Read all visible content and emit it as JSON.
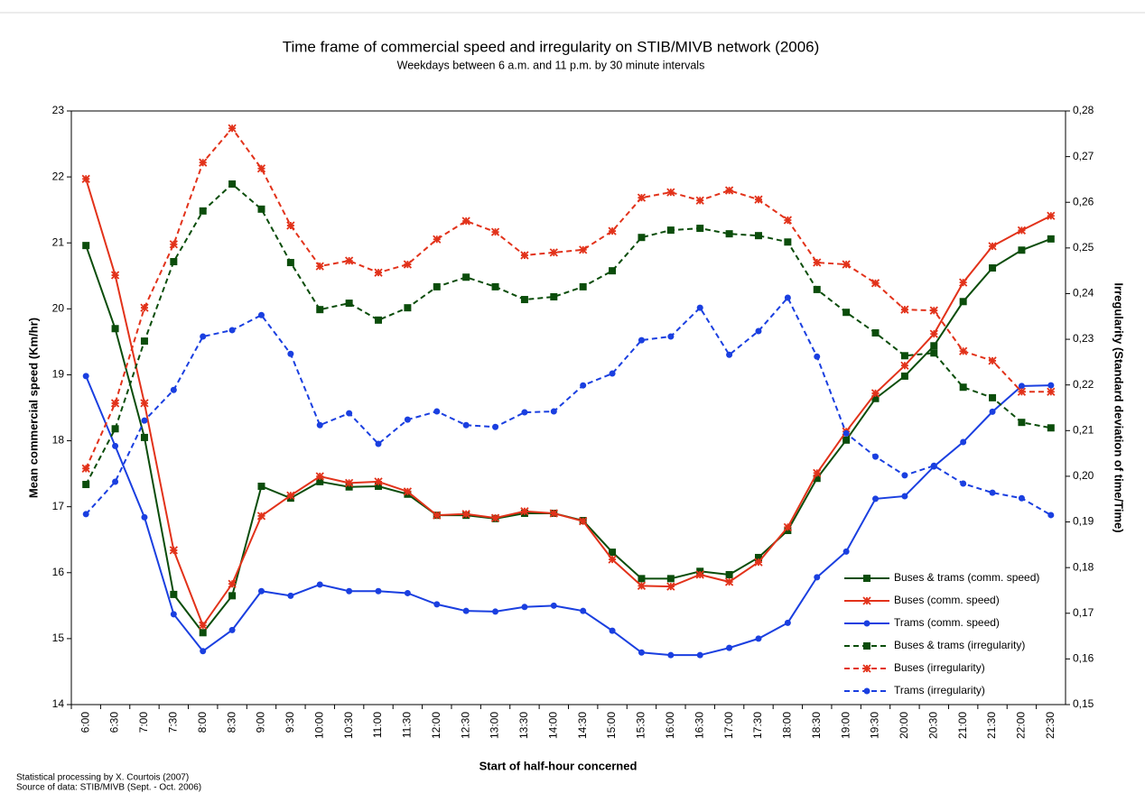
{
  "chart_data": {
    "type": "line",
    "title": "Time frame of commercial speed and irregularity on STIB/MIVB network (2006)",
    "subtitle": "Weekdays between 6 a.m. and 11 p.m. by 30 minute intervals",
    "x_label": "Start of half-hour concerned",
    "y_label": "Mean commercial speed (Km/hr)",
    "y2_label": "Irregularity (Standard deviation of time/Time)",
    "notes": [
      "Statistical processing by X. Courtois (2007)",
      "Source of data: STIB/MIVB (Sept. - Oct. 2006)"
    ],
    "categories": [
      "6:00",
      "6:30",
      "7:00",
      "7:30",
      "8:00",
      "8:30",
      "9:00",
      "9:30",
      "10:00",
      "10:30",
      "11:00",
      "11:30",
      "12:00",
      "12:30",
      "13:00",
      "13:30",
      "14:00",
      "14:30",
      "15:00",
      "15:30",
      "16:00",
      "16:30",
      "17:00",
      "17:30",
      "18:00",
      "18:30",
      "19:00",
      "19:30",
      "20:00",
      "20:30",
      "21:00",
      "21:30",
      "22:00",
      "22:30"
    ],
    "ylim": [
      14,
      23
    ],
    "yticks": [
      14,
      15,
      16,
      17,
      18,
      19,
      20,
      21,
      22,
      23
    ],
    "y2lim": [
      0.15,
      0.28
    ],
    "y2ticks": [
      {
        "value": 0.15,
        "label": "0,15"
      },
      {
        "value": 0.16,
        "label": "0,16"
      },
      {
        "value": 0.17,
        "label": "0,17"
      },
      {
        "value": 0.18,
        "label": "0,18"
      },
      {
        "value": 0.19,
        "label": "0,19"
      },
      {
        "value": 0.2,
        "label": "0,20"
      },
      {
        "value": 0.21,
        "label": "0,21"
      },
      {
        "value": 0.22,
        "label": "0,22"
      },
      {
        "value": 0.23,
        "label": "0,23"
      },
      {
        "value": 0.24,
        "label": "0,24"
      },
      {
        "value": 0.25,
        "label": "0,25"
      },
      {
        "value": 0.26,
        "label": "0,26"
      },
      {
        "value": 0.27,
        "label": "0,27"
      },
      {
        "value": 0.28,
        "label": "0,28"
      }
    ],
    "legend": "lower right",
    "series": [
      {
        "name": "Buses & trams (comm. speed)",
        "color": "#0b4d0b",
        "marker": "square",
        "dashed": false,
        "values": [
          20.96,
          19.7,
          18.05,
          15.67,
          15.09,
          15.65,
          17.31,
          17.13,
          17.38,
          17.3,
          17.31,
          17.19,
          16.87,
          16.87,
          16.82,
          16.9,
          16.9,
          16.79,
          16.31,
          15.91,
          15.91,
          16.02,
          15.97,
          16.23,
          16.64,
          17.43,
          18.01,
          18.64,
          18.98,
          19.44,
          20.11,
          20.62,
          20.89,
          21.06
        ]
      },
      {
        "name": "Buses (comm. speed)",
        "color": "#e2321a",
        "marker": "star",
        "dashed": false,
        "values": [
          21.97,
          20.51,
          18.57,
          16.34,
          15.2,
          15.83,
          16.86,
          17.17,
          17.46,
          17.36,
          17.38,
          17.23,
          16.87,
          16.89,
          16.83,
          16.93,
          16.9,
          16.78,
          16.2,
          15.8,
          15.79,
          15.97,
          15.86,
          16.16,
          16.69,
          17.51,
          18.14,
          18.72,
          19.14,
          19.62,
          20.4,
          20.95,
          21.19,
          21.41
        ]
      },
      {
        "name": "Trams (comm. speed)",
        "color": "#1a3fe0",
        "marker": "circle",
        "dashed": false,
        "values": [
          18.98,
          17.92,
          16.84,
          15.37,
          14.81,
          15.13,
          15.72,
          15.65,
          15.82,
          15.72,
          15.72,
          15.69,
          15.52,
          15.42,
          15.41,
          15.48,
          15.5,
          15.42,
          15.12,
          14.79,
          14.75,
          14.75,
          14.86,
          15.0,
          15.24,
          15.93,
          16.32,
          17.12,
          17.16,
          17.61,
          17.98,
          18.44,
          18.83,
          18.84
        ]
      },
      {
        "name": "Buses & trams (irregularity)",
        "color": "#0b4d0b",
        "marker": "square",
        "dashed": true,
        "axis": "y2",
        "values": [
          0.1982,
          0.2104,
          0.2296,
          0.247,
          0.2581,
          0.264,
          0.2585,
          0.2468,
          0.2365,
          0.2379,
          0.2342,
          0.2369,
          0.2415,
          0.2436,
          0.2415,
          0.2387,
          0.2393,
          0.2415,
          0.245,
          0.2523,
          0.2539,
          0.2543,
          0.2531,
          0.2527,
          0.2513,
          0.2409,
          0.2359,
          0.2314,
          0.2264,
          0.227,
          0.2195,
          0.2172,
          0.2118,
          0.2106
        ]
      },
      {
        "name": "Buses (irregularity)",
        "color": "#e2321a",
        "marker": "star",
        "dashed": true,
        "axis": "y2",
        "values": [
          0.2017,
          0.216,
          0.2369,
          0.2508,
          0.2687,
          0.2762,
          0.2674,
          0.2549,
          0.246,
          0.2472,
          0.2446,
          0.2464,
          0.2519,
          0.2559,
          0.2535,
          0.2484,
          0.249,
          0.2496,
          0.2537,
          0.261,
          0.2622,
          0.2604,
          0.2626,
          0.2606,
          0.2561,
          0.2468,
          0.2464,
          0.2423,
          0.2365,
          0.2363,
          0.2274,
          0.2253,
          0.2185,
          0.2185
        ]
      },
      {
        "name": "Trams (irregularity)",
        "color": "#1a3fe0",
        "marker": "circle",
        "dashed": true,
        "axis": "y2",
        "values": [
          0.1917,
          0.1988,
          0.2122,
          0.2189,
          0.2306,
          0.232,
          0.2353,
          0.2268,
          0.2112,
          0.2138,
          0.2071,
          0.2124,
          0.2142,
          0.2112,
          0.2108,
          0.214,
          0.2142,
          0.2199,
          0.2225,
          0.2298,
          0.2306,
          0.2369,
          0.2266,
          0.2318,
          0.2391,
          0.2262,
          0.2094,
          0.2043,
          0.2002,
          0.2023,
          0.1984,
          0.1964,
          0.1952,
          0.1915
        ]
      }
    ]
  }
}
